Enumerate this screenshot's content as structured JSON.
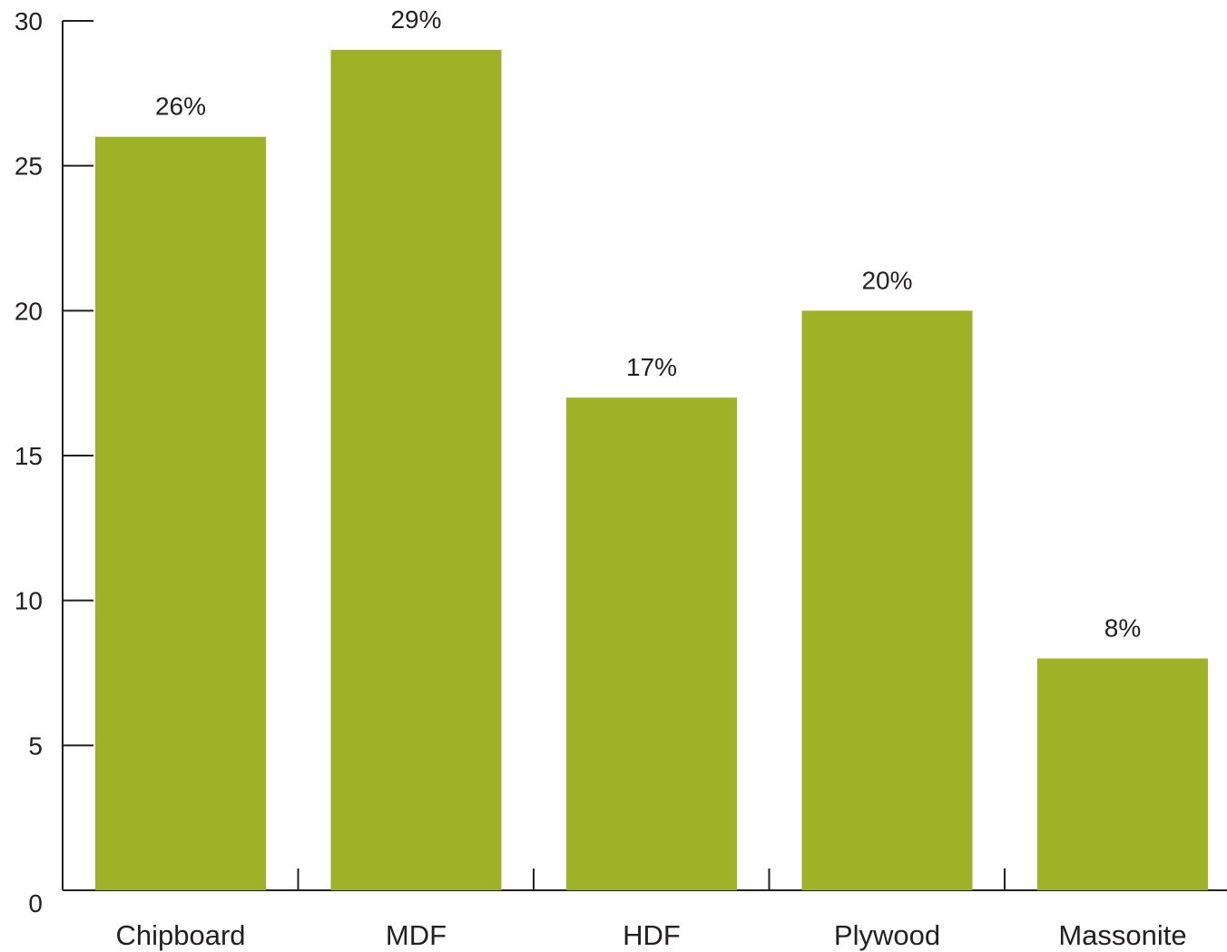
{
  "chart_data": {
    "type": "bar",
    "categories": [
      "Chipboard",
      "MDF",
      "HDF",
      "Plywood",
      "Massonite"
    ],
    "values": [
      26,
      29,
      17,
      20,
      8
    ],
    "data_labels": [
      "26%",
      "29%",
      "17%",
      "20%",
      "8%"
    ],
    "ylim": [
      0,
      30
    ],
    "yticks": [
      0,
      5,
      10,
      15,
      20,
      25,
      30
    ],
    "bar_color": "#9db227",
    "axis_color": "#231f20",
    "grid": false,
    "legend": "none"
  }
}
